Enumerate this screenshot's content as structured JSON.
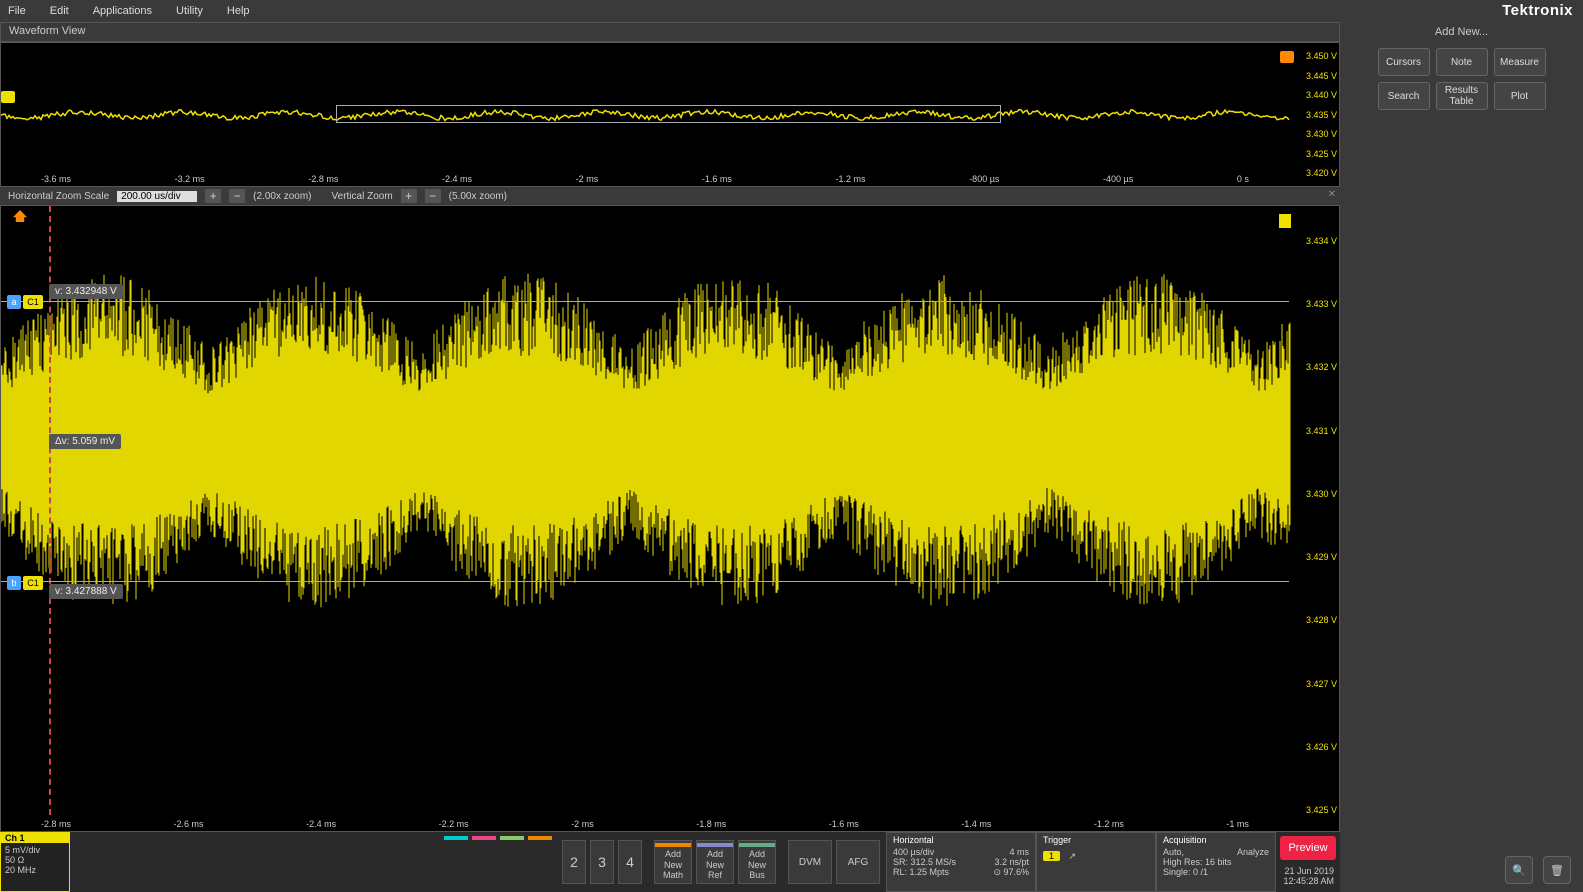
{
  "menu": {
    "file": "File",
    "edit": "Edit",
    "applications": "Applications",
    "utility": "Utility",
    "help": "Help"
  },
  "brand": "Tektronix",
  "addnew": "Add New...",
  "tools": {
    "cursors": "Cursors",
    "note": "Note",
    "measure": "Measure",
    "search": "Search",
    "results": "Results\nTable",
    "plot": "Plot"
  },
  "wf_title": "Waveform View",
  "overview": {
    "y_labels": [
      "3.450 V",
      "3.445 V",
      "3.440 V",
      "3.435 V",
      "3.430 V",
      "3.425 V",
      "3.420 V"
    ],
    "x_labels": [
      "-3.6 ms",
      "-3.2 ms",
      "-2.8 ms",
      "-2.4 ms",
      "-2 ms",
      "-1.6 ms",
      "-1.2 ms",
      "-800 µs",
      "-400 µs",
      "0 s"
    ],
    "waveform_color": "#eee100",
    "background": "#000000"
  },
  "zoombar": {
    "hz_label": "Horizontal Zoom Scale",
    "hz_value": "200.00 us/div",
    "hz_zoom": "(2.00x zoom)",
    "vz_label": "Vertical Zoom",
    "vz_zoom": "(5.00x zoom)"
  },
  "main": {
    "y_labels": [
      "3.434 V",
      "3.433 V",
      "3.432 V",
      "3.431 V",
      "3.430 V",
      "3.429 V",
      "3.428 V",
      "3.427 V",
      "3.426 V",
      "3.425 V"
    ],
    "x_labels": [
      "-2.8 ms",
      "-2.6 ms",
      "-2.4 ms",
      "-2.2 ms",
      "-2 ms",
      "-1.8 ms",
      "-1.6 ms",
      "-1.4 ms",
      "-1.2 ms",
      "-1 ms"
    ],
    "cursor_a": {
      "tag": "a",
      "ch": "C1",
      "label": "v: 3.432948 V"
    },
    "cursor_b": {
      "tag": "b",
      "ch": "C1",
      "label": "v: 3.427888 V"
    },
    "delta_v": "Δv: 5.059 mV",
    "waveform_color": "#eee100"
  },
  "channel": {
    "name": "Ch 1",
    "vdiv": "5 mV/div",
    "impedance": "50 Ω",
    "bw": "20 MHz"
  },
  "numbtns": [
    "2",
    "3",
    "4"
  ],
  "addbtns": [
    {
      "l1": "Add",
      "l2": "New",
      "l3": "Math",
      "color": "#ee8800"
    },
    {
      "l1": "Add",
      "l2": "New",
      "l3": "Ref",
      "color": "#8888cc"
    },
    {
      "l1": "Add",
      "l2": "New",
      "l3": "Bus",
      "color": "#66aa88"
    }
  ],
  "featbtns": [
    "DVM",
    "AFG"
  ],
  "colortabs": [
    "#00cccc",
    "#ee4488",
    "#88cc66",
    "#ee8800"
  ],
  "horizontal": {
    "title": "Horizontal",
    "r1a": "400 µs/div",
    "r1b": "4 ms",
    "r2a": "SR: 312.5 MS/s",
    "r2b": "3.2 ns/pt",
    "r3a": "RL: 1.25 Mpts",
    "r3b": "⊙ 97.6%"
  },
  "trigger": {
    "title": "Trigger",
    "ch": "1",
    "edge": "↗"
  },
  "acquisition": {
    "title": "Acquisition",
    "r1a": "Auto,",
    "r1b": "Analyze",
    "r2": "High Res: 16 bits",
    "r3": "Single: 0 /1"
  },
  "preview": "Preview",
  "datetime": {
    "date": "21 Jun 2019",
    "time": "12:45:28 AM"
  }
}
